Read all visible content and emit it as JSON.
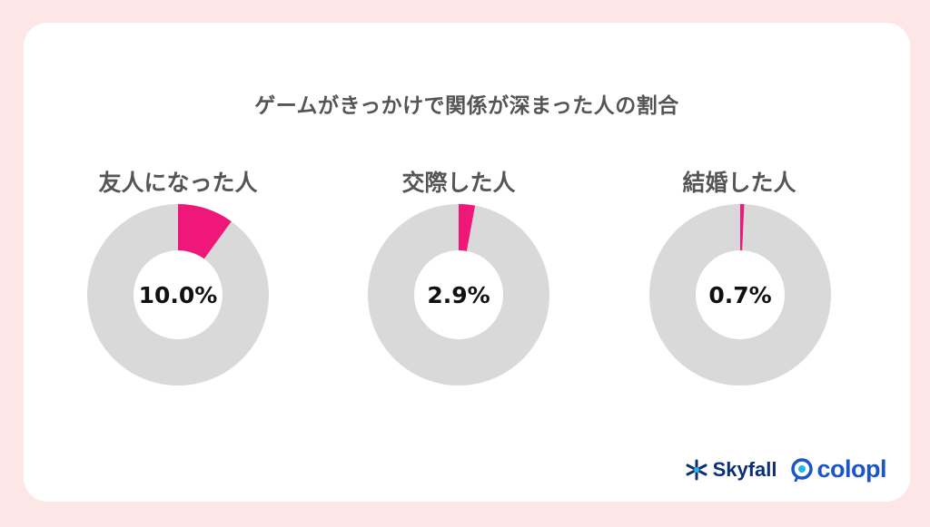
{
  "title": "ゲームがきっかけで関係が深まった人の割合",
  "colors": {
    "highlight": "#f0177a",
    "remainder": "#d9d9d9",
    "background": "#fde6e6"
  },
  "chart_data": [
    {
      "type": "pie",
      "title": "友人になった人",
      "value": 10.0,
      "label": "10.0%",
      "unit": "%",
      "slices": [
        {
          "value": 10.0
        },
        {
          "value": 90.0
        }
      ]
    },
    {
      "type": "pie",
      "title": "交際した人",
      "value": 2.9,
      "label": "2.9%",
      "unit": "%",
      "slices": [
        {
          "value": 2.9
        },
        {
          "value": 97.1
        }
      ]
    },
    {
      "type": "pie",
      "title": "結婚した人",
      "value": 0.7,
      "label": "0.7%",
      "unit": "%",
      "slices": [
        {
          "value": 0.7
        },
        {
          "value": 99.3
        }
      ]
    }
  ],
  "brands": {
    "skyfall": {
      "name": "Skyfall",
      "icon": "skyfall-logo-icon"
    },
    "colopl": {
      "name": "colopl",
      "icon": "colopl-logo-icon"
    }
  }
}
